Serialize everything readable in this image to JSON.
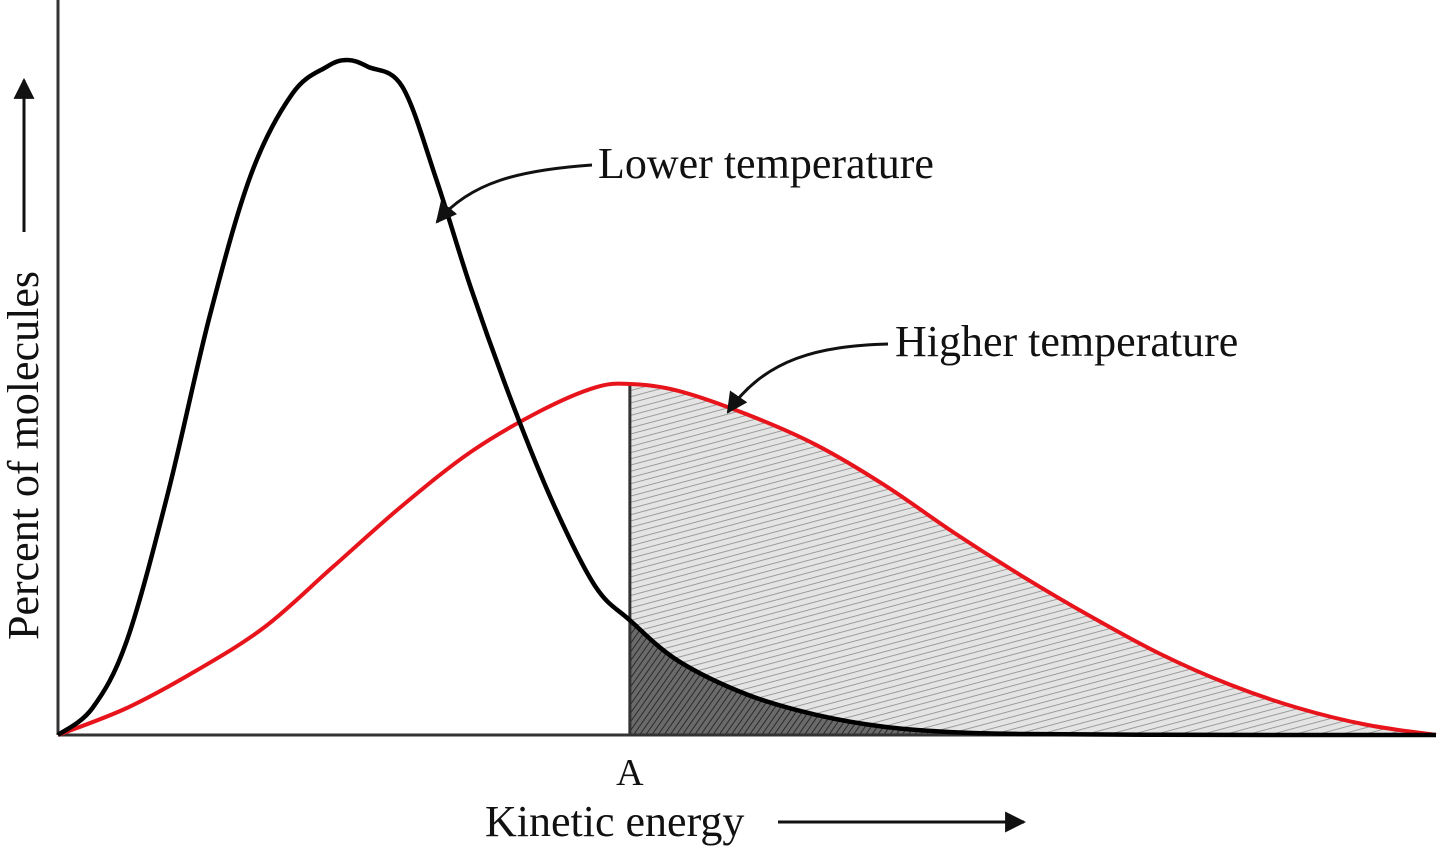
{
  "chart_data": {
    "type": "line",
    "title": "",
    "xlabel": "Kinetic energy",
    "ylabel": "Percent of molecules",
    "xlim": [
      0,
      1
    ],
    "ylim": [
      0,
      1
    ],
    "grid": false,
    "ticks": {
      "x": [
        {
          "label": "A",
          "value": 0.415
        }
      ]
    },
    "shading": "area under each curve for kinetic energy greater than A",
    "series": [
      {
        "name": "Lower temperature",
        "color": "#000000",
        "points": [
          [
            0.0,
            0.0
          ],
          [
            0.025,
            0.04
          ],
          [
            0.05,
            0.14
          ],
          [
            0.08,
            0.36
          ],
          [
            0.11,
            0.62
          ],
          [
            0.14,
            0.83
          ],
          [
            0.17,
            0.95
          ],
          [
            0.195,
            0.99
          ],
          [
            0.21,
            1.0
          ],
          [
            0.225,
            0.99
          ],
          [
            0.25,
            0.96
          ],
          [
            0.275,
            0.82
          ],
          [
            0.3,
            0.66
          ],
          [
            0.33,
            0.49
          ],
          [
            0.36,
            0.34
          ],
          [
            0.39,
            0.22
          ],
          [
            0.415,
            0.17
          ],
          [
            0.45,
            0.11
          ],
          [
            0.5,
            0.06
          ],
          [
            0.55,
            0.03
          ],
          [
            0.6,
            0.012
          ],
          [
            0.65,
            0.004
          ],
          [
            0.7,
            0.0015
          ],
          [
            0.8,
            0.0003
          ],
          [
            1.0,
            0.0
          ]
        ]
      },
      {
        "name": "Higher temperature",
        "color": "#e8141c",
        "points": [
          [
            0.0,
            0.0
          ],
          [
            0.05,
            0.04
          ],
          [
            0.1,
            0.095
          ],
          [
            0.15,
            0.16
          ],
          [
            0.2,
            0.25
          ],
          [
            0.25,
            0.34
          ],
          [
            0.3,
            0.42
          ],
          [
            0.35,
            0.48
          ],
          [
            0.39,
            0.515
          ],
          [
            0.415,
            0.52
          ],
          [
            0.45,
            0.51
          ],
          [
            0.5,
            0.475
          ],
          [
            0.55,
            0.43
          ],
          [
            0.6,
            0.37
          ],
          [
            0.65,
            0.3
          ],
          [
            0.7,
            0.235
          ],
          [
            0.75,
            0.175
          ],
          [
            0.8,
            0.12
          ],
          [
            0.85,
            0.075
          ],
          [
            0.9,
            0.04
          ],
          [
            0.95,
            0.015
          ],
          [
            1.0,
            0.0
          ]
        ]
      }
    ],
    "annotations": [
      {
        "text": "Lower temperature",
        "target_series": "Lower temperature"
      },
      {
        "text": "Higher temperature",
        "target_series": "Higher temperature"
      }
    ]
  }
}
